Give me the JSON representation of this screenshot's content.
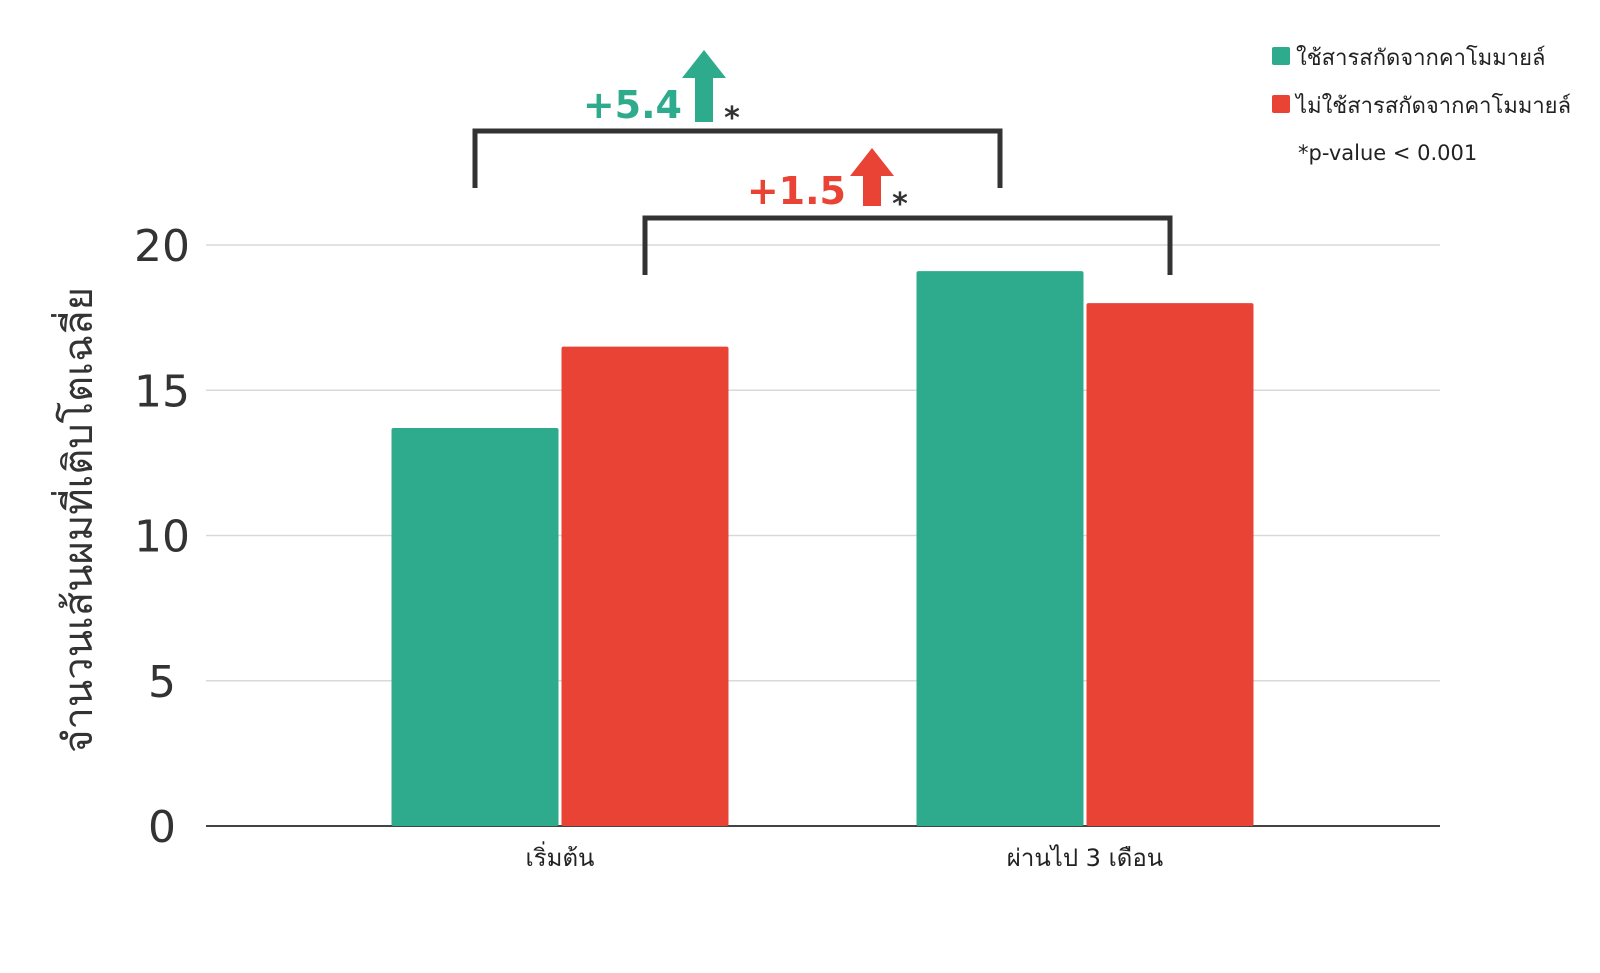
{
  "chart_data": {
    "type": "bar",
    "categories": [
      "เริ่มต้น",
      "ผ่านไป 3 เดือน"
    ],
    "series": [
      {
        "name": "ใช้สารสกัดจากคาโมมายล์",
        "values": [
          13.7,
          19.1
        ],
        "color": "#2eaa8c"
      },
      {
        "name": "ไม่ใช้สารสกัดจากคาโมมายล์",
        "values": [
          16.5,
          18.0
        ],
        "color": "#e84335"
      }
    ],
    "ylabel": "จำนวนเส้นผมที่เติบโตเฉลี่ย",
    "xlabel": "",
    "ylim": [
      0,
      20
    ],
    "yticks": [
      "0",
      "5",
      "10",
      "15",
      "20"
    ],
    "grid": true,
    "legend": "top-right",
    "note": "*p-value < 0.001",
    "annotations": [
      {
        "label": "+5.4",
        "star": "*",
        "series": 0,
        "from_category": 0,
        "to_category": 1,
        "color": "#2eaa8c",
        "icon": "arrow-up-icon"
      },
      {
        "label": "+1.5",
        "star": "*",
        "series": 1,
        "from_category": 0,
        "to_category": 1,
        "color": "#e84335",
        "icon": "arrow-up-icon"
      }
    ]
  }
}
